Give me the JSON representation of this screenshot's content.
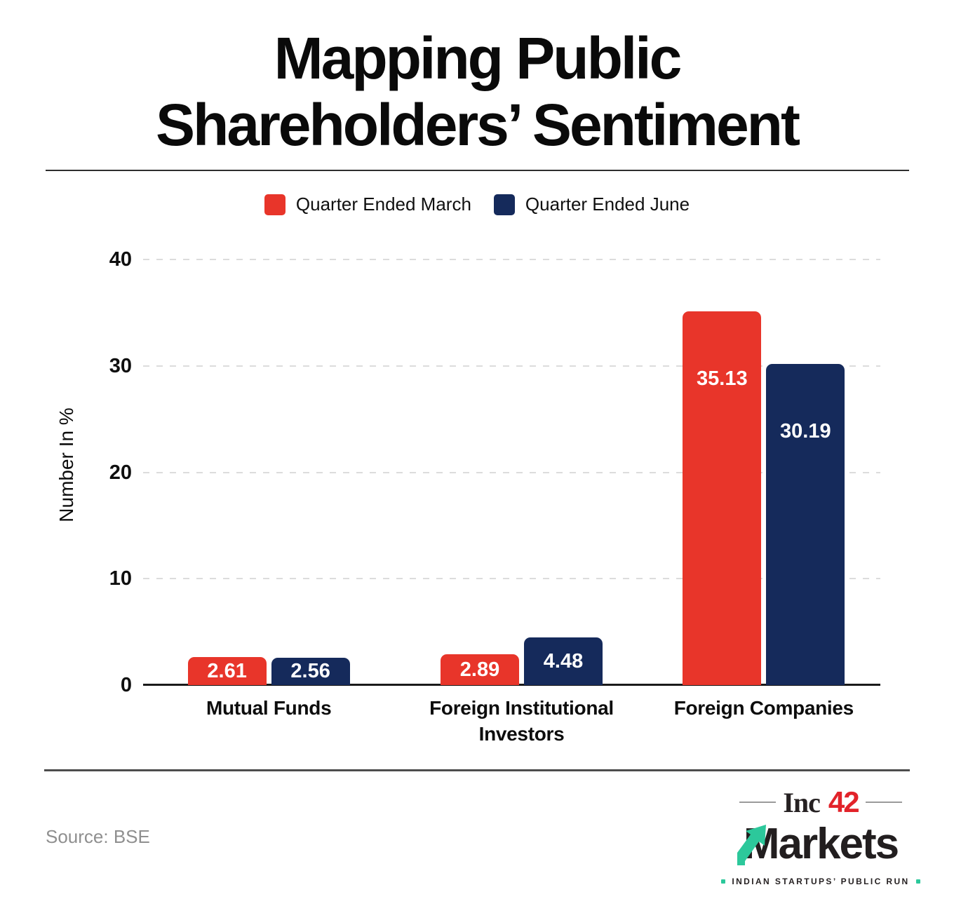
{
  "title": {
    "line1": "Mapping Public",
    "line2": "Shareholders’ Sentiment"
  },
  "legend": [
    {
      "label": "Quarter Ended March",
      "color": "#e8352a"
    },
    {
      "label": "Quarter Ended June",
      "color": "#152a5b"
    }
  ],
  "chart_data": {
    "type": "bar",
    "categories": [
      "Mutual Funds",
      "Foreign Institutional Investors",
      "Foreign Companies"
    ],
    "series": [
      {
        "name": "Quarter Ended March",
        "color": "#e8352a",
        "values": [
          2.61,
          2.89,
          35.13
        ]
      },
      {
        "name": "Quarter Ended June",
        "color": "#152a5b",
        "values": [
          2.56,
          4.48,
          30.19
        ]
      }
    ],
    "title": "Mapping Public Shareholders’ Sentiment",
    "xlabel": "",
    "ylabel": "Number In %",
    "yticks": [
      0,
      10,
      20,
      30,
      40
    ],
    "ylim": [
      0,
      40
    ],
    "grid": "horizontal-dashed",
    "legend_position": "top",
    "value_labels": [
      "2.61",
      "2.56",
      "2.89",
      "4.48",
      "35.13",
      "30.19"
    ]
  },
  "colors": {
    "march_red": "#e8352a",
    "june_navy": "#152a5b",
    "gridline": "#dcdcdc",
    "axis": "#1a1a1a",
    "logo_green": "#2cc89b",
    "logo_red": "#e2232a"
  },
  "footer": {
    "source": "Source: BSE"
  },
  "logo": {
    "name_prefix": "Inc",
    "name_suffix": "42",
    "wordmark": "Markets",
    "tagline": "INDIAN STARTUPS’ PUBLIC RUN"
  }
}
